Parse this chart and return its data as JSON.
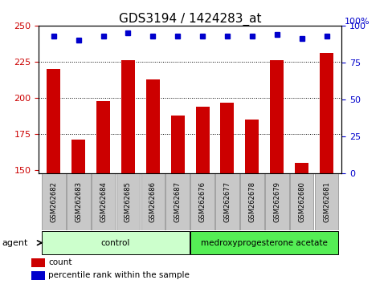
{
  "title": "GDS3194 / 1424283_at",
  "categories": [
    "GSM262682",
    "GSM262683",
    "GSM262684",
    "GSM262685",
    "GSM262686",
    "GSM262687",
    "GSM262676",
    "GSM262677",
    "GSM262678",
    "GSM262679",
    "GSM262680",
    "GSM262681"
  ],
  "bar_values": [
    220,
    171,
    198,
    226,
    213,
    188,
    194,
    197,
    185,
    226,
    155,
    231
  ],
  "percentile_values": [
    93,
    90,
    93,
    95,
    93,
    93,
    93,
    93,
    93,
    94,
    91,
    93
  ],
  "bar_color": "#cc0000",
  "percentile_color": "#0000cc",
  "ylim_left": [
    148,
    250
  ],
  "ylim_right": [
    0,
    100
  ],
  "yticks_left": [
    150,
    175,
    200,
    225,
    250
  ],
  "yticks_right": [
    0,
    25,
    50,
    75,
    100
  ],
  "grid_values": [
    175,
    200,
    225
  ],
  "groups": [
    {
      "label": "control",
      "color": "#ccffcc",
      "count": 6
    },
    {
      "label": "medroxyprogesterone acetate",
      "color": "#55ee55",
      "count": 6
    }
  ],
  "agent_label": "agent",
  "legend_items": [
    {
      "label": "count",
      "color": "#cc0000"
    },
    {
      "label": "percentile rank within the sample",
      "color": "#0000cc"
    }
  ],
  "background_color": "#ffffff",
  "plot_bg": "#ffffff",
  "tick_area_bg": "#c8c8c8",
  "title_fontsize": 11,
  "axis_fontsize": 8,
  "bar_width": 0.55
}
